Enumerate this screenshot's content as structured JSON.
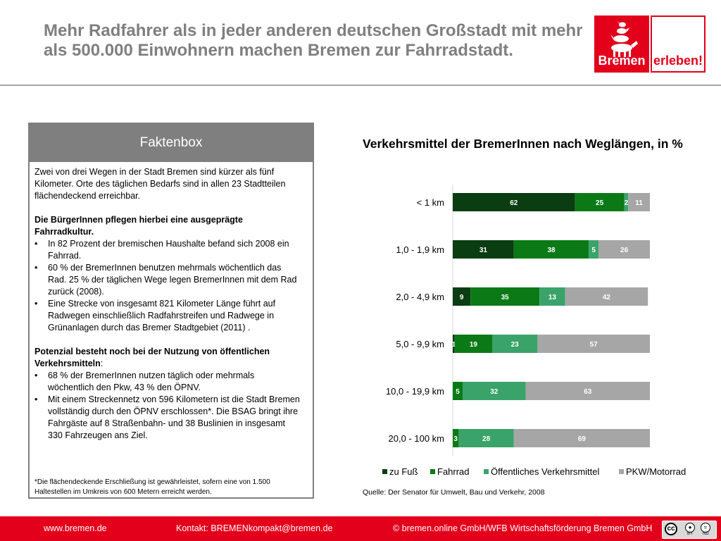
{
  "header": {
    "title": "Mehr Radfahrer als in jeder anderen deutschen Großstadt mit mehr als 500.000 Einwohnern machen Bremen zur Fahrradstadt.",
    "logo_left": "Bremen",
    "logo_right": "erleben!"
  },
  "factbox": {
    "heading": "Faktenbox",
    "intro": "Zwei von drei Wegen in der Stadt Bremen sind kürzer als fünf Kilometer. Orte des täglichen Bedarfs sind in allen 23 Stadtteilen flächendeckend erreichbar.",
    "section1_heading": "Die BürgerInnen pflegen hierbei eine ausgeprägte Fahrradkultur.",
    "section1_items": [
      "In 82 Prozent der bremischen Haushalte befand sich 2008 ein Fahrrad.",
      "60 % der BremerInnen benutzen mehrmals wöchentlich das Rad. 25 % der täglichen Wege legen BremerInnen mit dem Rad zurück (2008).",
      "Eine Strecke von insgesamt 821 Kilometer Länge führt auf Radwegen einschließlich Radfahrstreifen und Radwege in Grünanlagen durch das Bremer Stadtgebiet (2011) ."
    ],
    "section2_heading": "Potenzial besteht noch bei der Nutzung von öffentlichen Verkehrsmitteln",
    "section2_heading_suffix": ":",
    "section2_items": [
      "68 % der BremerInnen nutzen täglich oder mehrmals wöchentlich den Pkw, 43 % den ÖPNV.",
      "Mit einem Streckennetz von 596 Kilometern ist die Stadt Bremen vollständig durch den ÖPNV erschlossen*. Die BSAG bringt ihre Fahrgäste auf 8 Straßenbahn- und 38 Buslinien in insgesamt 330 Fahrzeugen ans Ziel."
    ],
    "footnote": "*Die flächendeckende Erschließung ist gewährleistet, sofern eine von 1.500 Haltestellen im Umkreis von 600 Metern erreicht werden."
  },
  "chart_data": {
    "type": "bar",
    "orientation": "horizontal",
    "stacked": true,
    "title": "Verkehrsmittel der BremerInnen nach Weglängen, in %",
    "categories": [
      "< 1 km",
      "1,0 - 1,9 km",
      "2,0 - 4,9 km",
      "5,0 - 9,9 km",
      "10,0 - 19,9 km",
      "20,0 - 100 km"
    ],
    "series": [
      {
        "name": "zu Fuß",
        "color": "#0a3d12",
        "values": [
          62,
          31,
          9,
          1,
          0,
          0
        ],
        "labels": [
          "62",
          "31",
          "9",
          "1",
          "",
          ""
        ]
      },
      {
        "name": "Fahrrad",
        "color": "#0b7a16",
        "values": [
          25,
          38,
          35,
          19,
          5,
          3
        ],
        "labels": [
          "25",
          "38",
          "35",
          "19",
          "5",
          "3"
        ]
      },
      {
        "name": "Öffentliches Verkehrsmittel",
        "color": "#3aa36a",
        "values": [
          2,
          5,
          13,
          23,
          32,
          28
        ],
        "labels": [
          "2",
          "5",
          "13",
          "23",
          "32",
          "28"
        ]
      },
      {
        "name": "PKW/Motorrad",
        "color": "#a6a6a6",
        "values": [
          11,
          26,
          42,
          57,
          63,
          69
        ],
        "labels": [
          "11",
          "26",
          "42",
          "57",
          "63",
          "69"
        ]
      }
    ],
    "xlim": [
      0,
      100
    ],
    "grid": false,
    "legend_position": "bottom",
    "source": "Quelle: Der Senator für Umwelt, Bau und Verkehr, 2008"
  },
  "footer": {
    "website": "www.bremen.de",
    "contact": "Kontakt: BREMENkompakt@bremen.de",
    "copyright": "© bremen.online GmbH/WFB Wirtschaftsförderung Bremen GmbH",
    "license_by": "BY",
    "license_nd": "ND",
    "license_icon": "creative-commons-icon"
  }
}
